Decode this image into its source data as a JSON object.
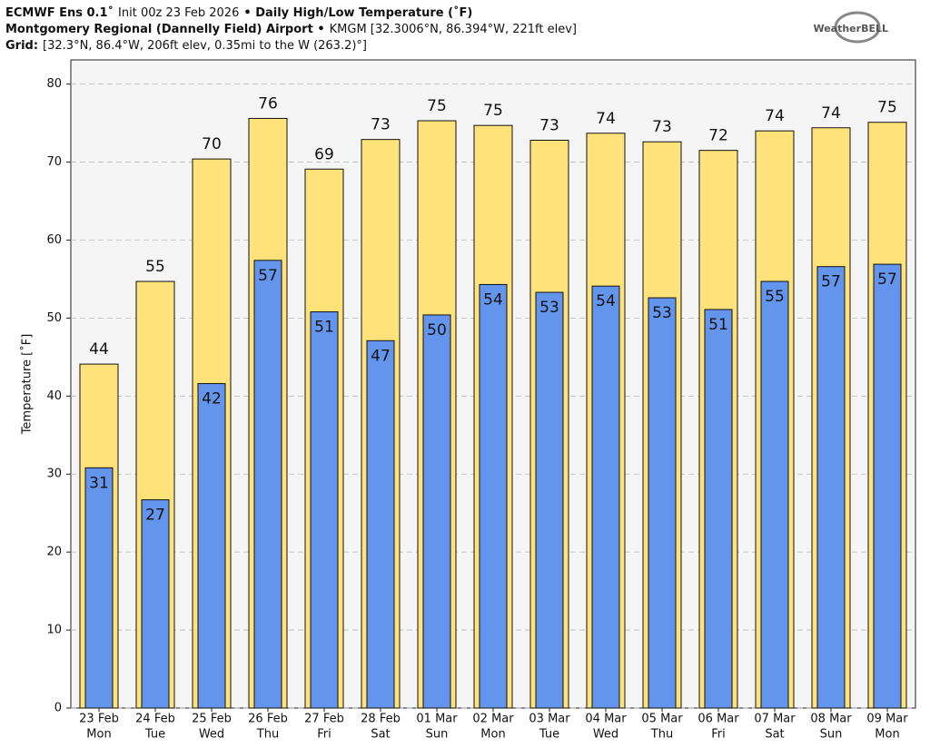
{
  "chart_data": {
    "type": "bar",
    "title_lines": [
      [
        {
          "text": "ECMWF Ens 0.1˚",
          "bold": true
        },
        {
          "text": "Init 00z 23 Feb 2026",
          "bold": false
        },
        {
          "text": "• Daily High/Low Temperature (˚F)",
          "bold": true
        }
      ],
      [
        {
          "text": "Montgomery Regional (Dannelly Field) Airport •",
          "bold": true
        },
        {
          "text": "KMGM [32.3006°N, 86.394°W, 221ft elev]",
          "bold": false
        }
      ],
      [
        {
          "text": "Grid:",
          "bold": true
        },
        {
          "text": "[32.3°N, 86.4°W, 206ft elev, 0.35mi to the W (263.2)°]",
          "bold": false
        }
      ]
    ],
    "logo": "WeatherBELL",
    "ylabel": "Temperature [˚F]",
    "categories": [
      "23 Feb",
      "24 Feb",
      "25 Feb",
      "26 Feb",
      "27 Feb",
      "28 Feb",
      "01 Mar",
      "02 Mar",
      "03 Mar",
      "04 Mar",
      "05 Mar",
      "06 Mar",
      "07 Mar",
      "08 Mar",
      "09 Mar"
    ],
    "category_weekdays": [
      "Mon",
      "Tue",
      "Wed",
      "Thu",
      "Fri",
      "Sat",
      "Sun",
      "Mon",
      "Tue",
      "Wed",
      "Thu",
      "Fri",
      "Sat",
      "Sun",
      "Mon"
    ],
    "series": [
      {
        "name": "High",
        "color": "#ffe27a",
        "values": [
          44.1,
          54.7,
          70.4,
          75.6,
          69.1,
          72.9,
          75.3,
          74.7,
          72.8,
          73.7,
          72.6,
          71.5,
          74.0,
          74.4,
          75.1
        ],
        "value_labels": [
          "44",
          "55",
          "70",
          "76",
          "69",
          "73",
          "75",
          "75",
          "73",
          "74",
          "73",
          "72",
          "74",
          "74",
          "75"
        ]
      },
      {
        "name": "Low",
        "color": "#6495ed",
        "values": [
          30.8,
          26.7,
          41.6,
          57.4,
          50.8,
          47.1,
          50.4,
          54.3,
          53.3,
          54.1,
          52.6,
          51.1,
          54.7,
          56.6,
          56.9
        ],
        "value_labels": [
          "31",
          "27",
          "42",
          "57",
          "51",
          "47",
          "50",
          "54",
          "53",
          "54",
          "53",
          "51",
          "55",
          "57",
          "57"
        ]
      }
    ],
    "ylim": [
      0,
      83.1
    ],
    "yticks": [
      0,
      10,
      20,
      30,
      40,
      50,
      60,
      70,
      80
    ],
    "grid": true
  }
}
